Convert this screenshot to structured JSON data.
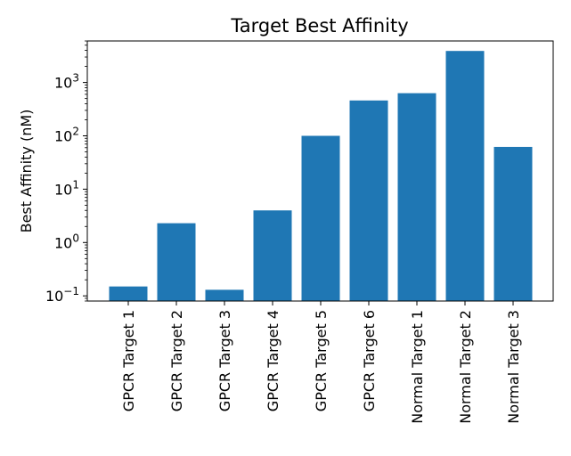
{
  "chart_data": {
    "type": "bar",
    "title": "Target Best Affinity",
    "xlabel": "",
    "ylabel": "Best Affinity (nM)",
    "yscale": "log",
    "ylim": [
      0.08,
      6000
    ],
    "grid": false,
    "bar_color": "#1f77b4",
    "categories": [
      "GPCR Target 1",
      "GPCR Target 2",
      "GPCR Target 3",
      "GPCR Target 4",
      "GPCR Target 5",
      "GPCR Target 6",
      "Normal Target 1",
      "Normal Target 2",
      "Normal Target 3"
    ],
    "values": [
      0.15,
      2.3,
      0.13,
      4.0,
      100,
      460,
      630,
      3900,
      62
    ],
    "yticks": [
      {
        "value": 0.1,
        "base": "10",
        "exp": "−1"
      },
      {
        "value": 1,
        "base": "10",
        "exp": "0"
      },
      {
        "value": 10,
        "base": "10",
        "exp": "1"
      },
      {
        "value": 100,
        "base": "10",
        "exp": "2"
      },
      {
        "value": 1000,
        "base": "10",
        "exp": "3"
      }
    ]
  }
}
